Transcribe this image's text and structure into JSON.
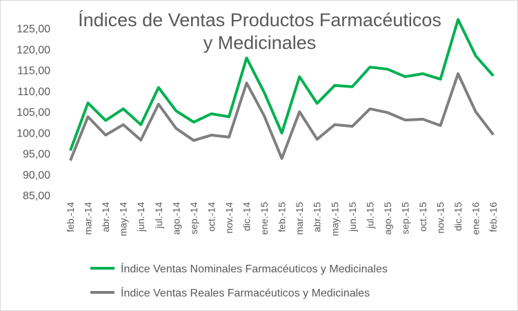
{
  "chart_data": {
    "type": "line",
    "title": [
      "Índices de Ventas Productos Farmacéuticos",
      "y Medicinales"
    ],
    "xlabel": "",
    "ylabel": "",
    "ylim": [
      85,
      125
    ],
    "yticks": [
      "85,00",
      "90,00",
      "95,00",
      "100,00",
      "105,00",
      "110,00",
      "115,00",
      "120,00",
      "125,00"
    ],
    "grid": false,
    "legend": "bottom",
    "categories": [
      "feb.-14",
      "mar.-14",
      "abr.-14",
      "may.-14",
      "jun.-14",
      "jul.-14",
      "ago.-14",
      "sep.-14",
      "oct.-14",
      "nov.-14",
      "dic.-14",
      "ene.-15",
      "feb.-15",
      "mar.-15",
      "abr.-15",
      "may.-15",
      "jun.-15",
      "jul.-15",
      "ago.-15",
      "sep.-15",
      "oct.-15",
      "nov.-15",
      "dic.-15",
      "ene.-16",
      "feb.-16"
    ],
    "series": [
      {
        "name": "Índice Ventas Nominales Farmacéuticos y Medicinales",
        "color": "#00b050",
        "values": [
          95.7,
          107.1,
          102.9,
          105.7,
          101.9,
          110.8,
          105.2,
          102.5,
          104.5,
          103.8,
          117.9,
          109.6,
          99.9,
          113.4,
          107.0,
          111.3,
          111.0,
          115.7,
          115.2,
          113.4,
          114.1,
          112.8,
          127.1,
          118.4,
          113.6
        ]
      },
      {
        "name": "Índice Ventas Reales Farmacéuticos y Medicinales",
        "color": "#7f7f7f",
        "values": [
          93.3,
          103.8,
          99.4,
          101.9,
          98.2,
          106.8,
          101.0,
          98.1,
          99.4,
          98.9,
          111.9,
          104.0,
          93.8,
          105.0,
          98.4,
          101.9,
          101.5,
          105.7,
          104.8,
          103.0,
          103.2,
          101.7,
          114.1,
          105.0,
          99.5
        ]
      }
    ]
  }
}
